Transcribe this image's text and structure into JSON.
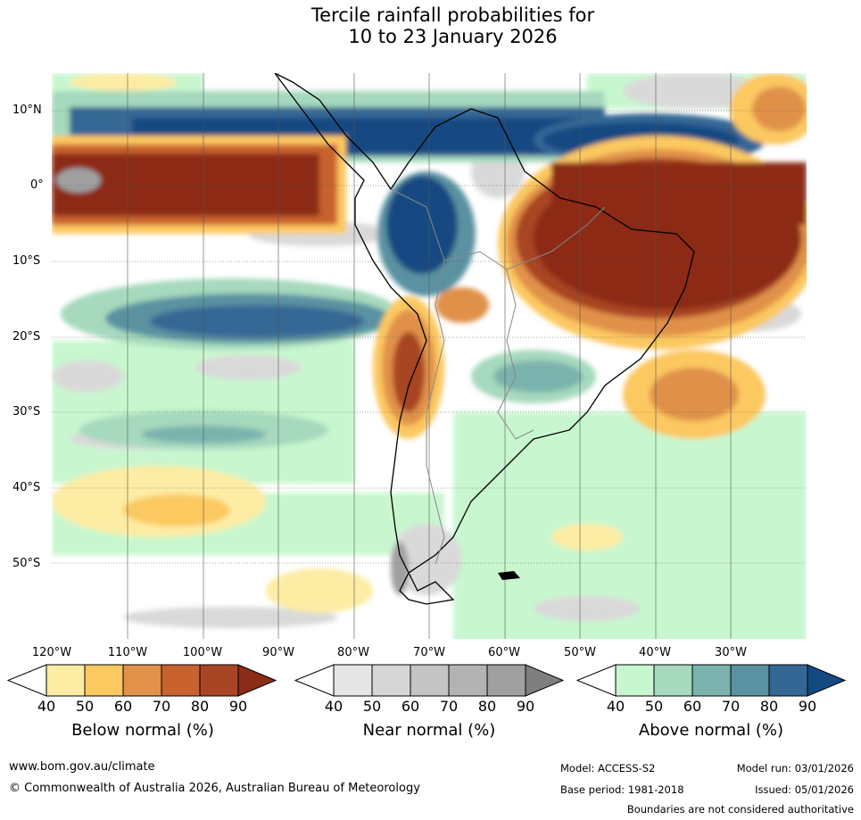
{
  "title_line1": "Tercile rainfall probabilities for",
  "title_line2": "10 to 23 January 2026",
  "map": {
    "region": "South America",
    "lat_labels": [
      "10°N",
      "0°",
      "10°S",
      "20°S",
      "30°S",
      "40°S",
      "50°S"
    ],
    "lon_labels": [
      "120°W",
      "110°W",
      "100°W",
      "90°W",
      "80°W",
      "70°W",
      "60°W",
      "50°W",
      "40°W",
      "30°W"
    ]
  },
  "colorbars": [
    {
      "title": "Below normal (%)",
      "ticks": [
        "40",
        "50",
        "60",
        "70",
        "80",
        "90"
      ],
      "colors": [
        "#fdeca3",
        "#fcc860",
        "#e0914a",
        "#c8622f",
        "#a84524",
        "#8c2b19"
      ]
    },
    {
      "title": "Near normal (%)",
      "ticks": [
        "40",
        "50",
        "60",
        "70",
        "80",
        "90"
      ],
      "colors": [
        "#e5e5e5",
        "#d6d6d6",
        "#c4c4c4",
        "#b3b3b3",
        "#a0a0a0",
        "#7f7f7f"
      ]
    },
    {
      "title": "Above normal (%)",
      "ticks": [
        "40",
        "50",
        "60",
        "70",
        "80",
        "90"
      ],
      "colors": [
        "#c8f7cf",
        "#a6d9bd",
        "#7ab3ad",
        "#5a92a1",
        "#356795",
        "#134a82"
      ]
    }
  ],
  "footer": {
    "url": "www.bom.gov.au/climate",
    "copyright": "© Commonwealth of Australia 2026, Australian Bureau of Meteorology",
    "model": "Model: ACCESS-S2",
    "base_period": "Base period: 1981-2018",
    "model_run": "Model run: 03/01/2026",
    "issued": "Issued: 05/01/2026",
    "disclaimer": "Boundaries are not considered authoritative"
  }
}
